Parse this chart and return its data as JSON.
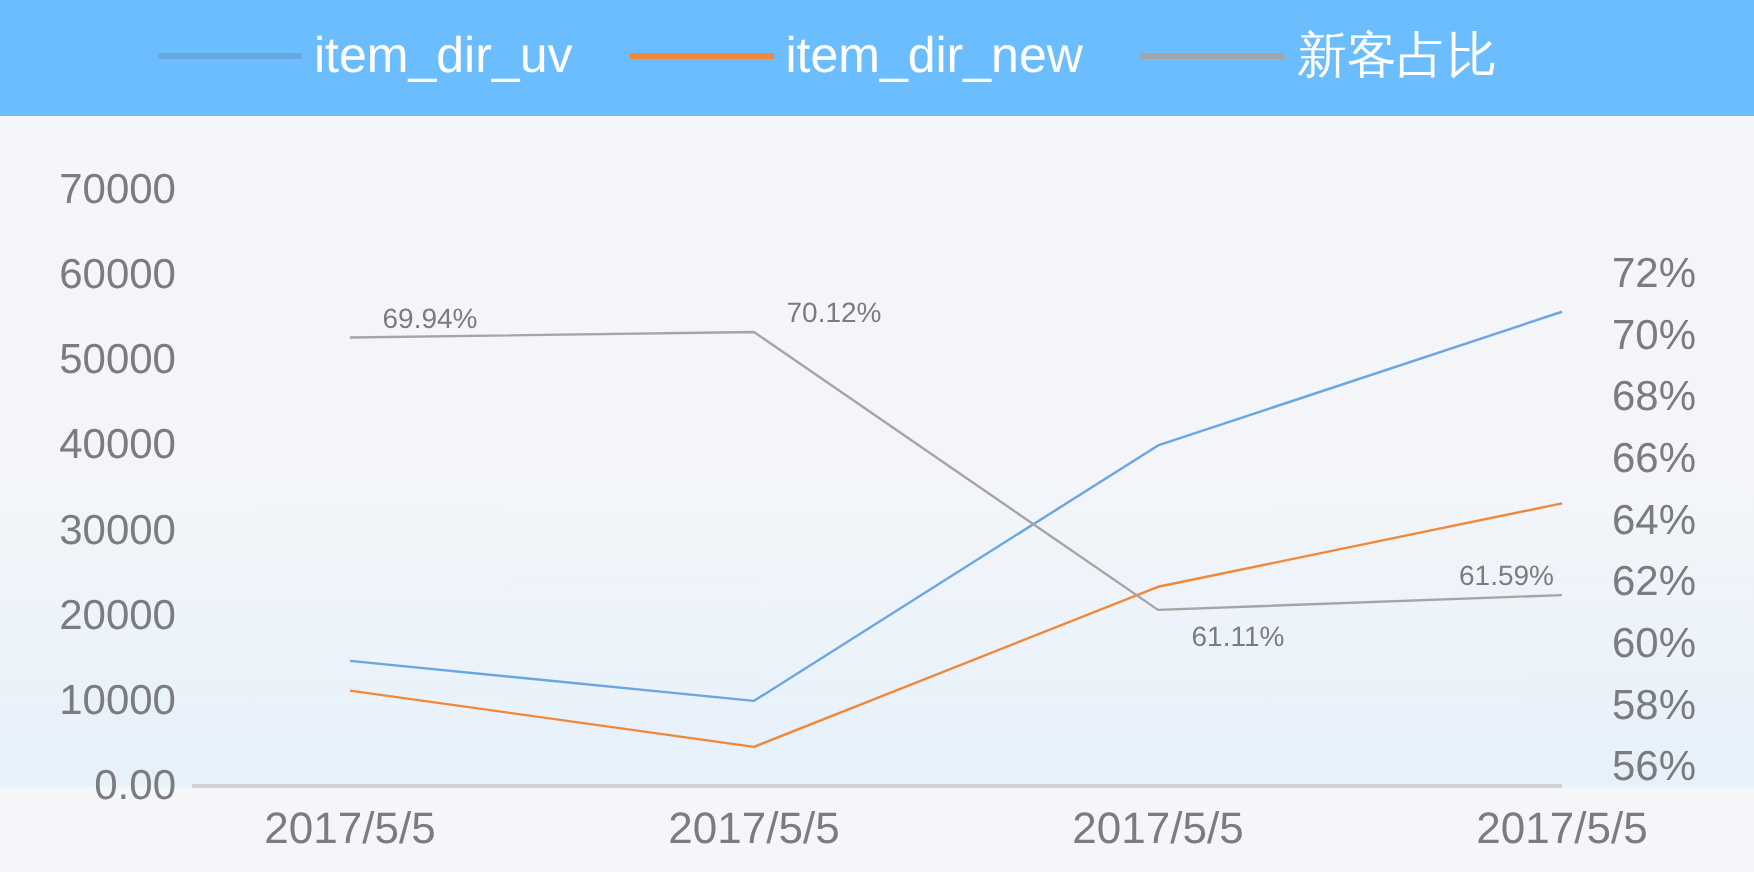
{
  "chart_data": {
    "type": "line",
    "categories": [
      "2017/5/5",
      "2017/5/5",
      "2017/5/5",
      "2017/5/5"
    ],
    "series": [
      {
        "name": "item_dir_uv",
        "color": "#6aa6e0",
        "values": [
          14700,
          10000,
          40000,
          55700
        ]
      },
      {
        "name": "item_dir_new",
        "color": "#f0883a",
        "values": [
          11200,
          4600,
          23400,
          33200
        ]
      },
      {
        "name": "新客占比",
        "color": "#a5a5a5",
        "axis": "y2",
        "values": [
          69.94,
          70.12,
          61.11,
          61.59
        ],
        "value_labels": [
          "69.94%",
          "70.12%",
          "61.11%",
          "61.59%"
        ]
      }
    ],
    "ylim": [
      0,
      70000
    ],
    "yticks": [
      {
        "value": 0,
        "label": "0.00"
      },
      10000,
      20000,
      30000,
      40000,
      50000,
      60000,
      70000
    ],
    "y2lim": [
      55.4,
      72
    ],
    "y2ticks": [
      {
        "value": 56,
        "label": "56%"
      },
      {
        "value": 58,
        "label": "58%"
      },
      {
        "value": 60,
        "label": "60%"
      },
      {
        "value": 62,
        "label": "62%"
      },
      {
        "value": 64,
        "label": "64%"
      },
      {
        "value": 66,
        "label": "66%"
      },
      {
        "value": 68,
        "label": "68%"
      },
      {
        "value": 70,
        "label": "70%"
      },
      {
        "value": 72,
        "label": "72%"
      }
    ],
    "legend": "top",
    "grid": false,
    "marker": "none",
    "line_style": "solid"
  }
}
